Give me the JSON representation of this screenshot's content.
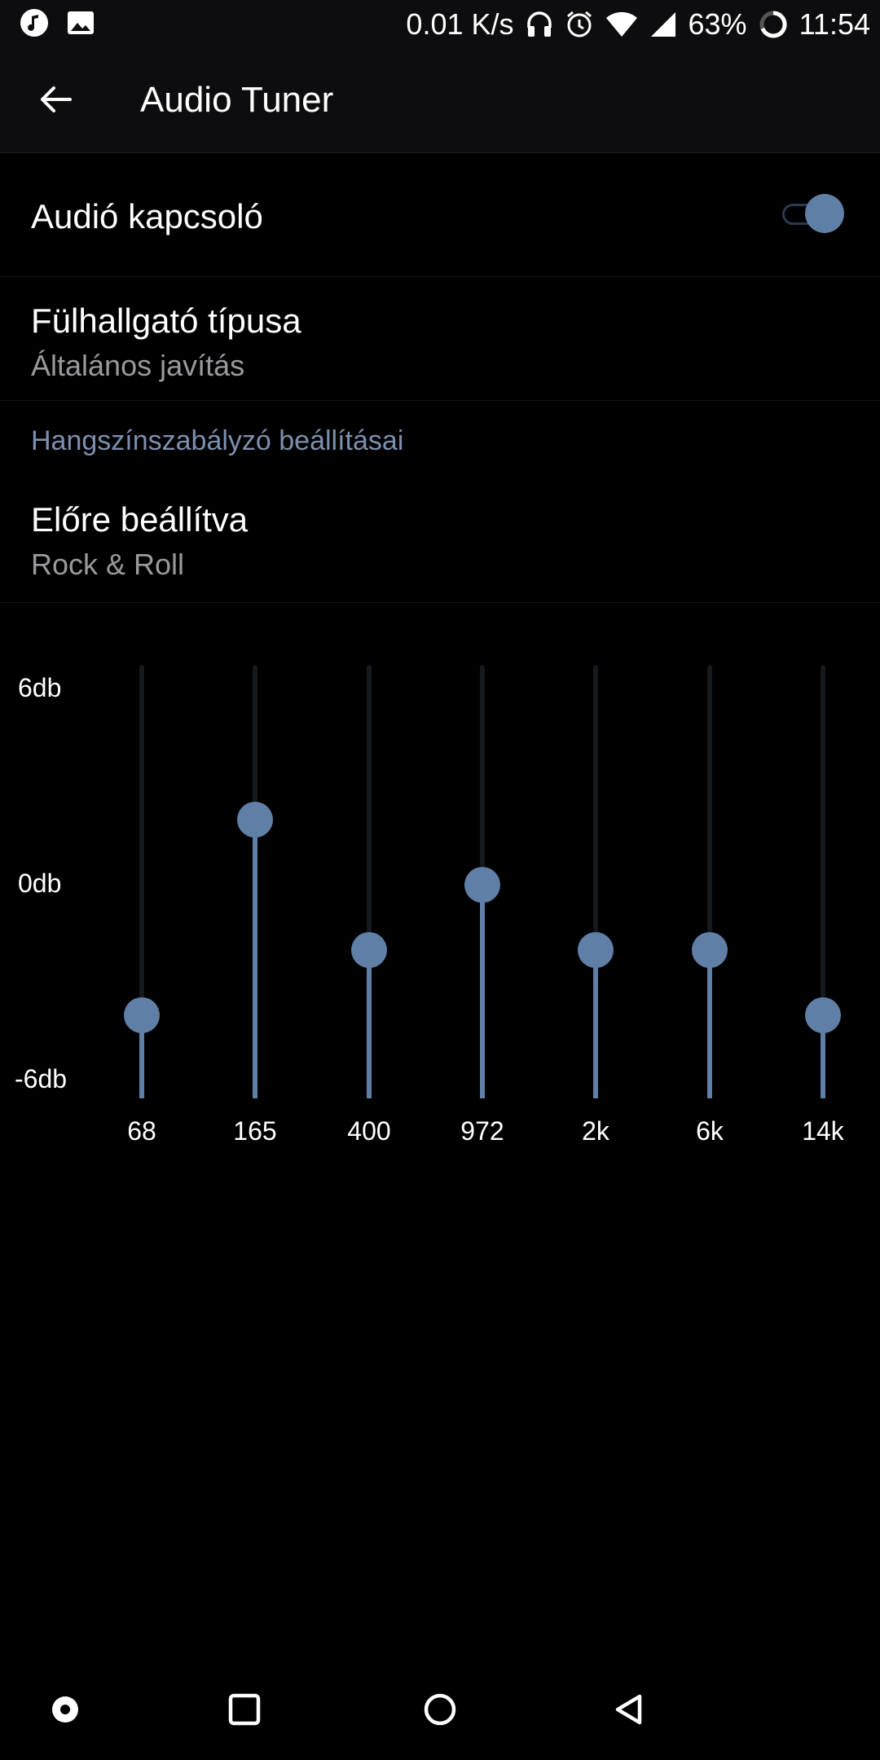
{
  "status_bar": {
    "icons_left": [
      "music-note-icon",
      "image-icon"
    ],
    "network_speed": "0.01 K/s",
    "icons_right": [
      "headphones-icon",
      "alarm-icon",
      "wifi-icon",
      "signal-icon"
    ],
    "battery": "63%",
    "time": "11:54"
  },
  "app_bar": {
    "back_icon": "arrow-left-icon",
    "title": "Audio Tuner"
  },
  "settings": {
    "audio_switch": {
      "label": "Audió kapcsoló",
      "enabled": true
    },
    "headphone_type": {
      "label": "Fülhallgató típusa",
      "value": "Általános javítás"
    },
    "eq_section_header": "Hangszínszabályzó beállításai",
    "preset": {
      "label": "Előre beállítva",
      "value": "Rock & Roll"
    }
  },
  "equalizer": {
    "db_labels": {
      "max": "6db",
      "mid": "0db",
      "min": "-6db"
    },
    "range_db": [
      -6,
      6
    ],
    "bands": [
      {
        "freq": "68",
        "db": -4
      },
      {
        "freq": "165",
        "db": 2
      },
      {
        "freq": "400",
        "db": -2
      },
      {
        "freq": "972",
        "db": 0
      },
      {
        "freq": "2k",
        "db": -2
      },
      {
        "freq": "6k",
        "db": -2
      },
      {
        "freq": "14k",
        "db": -4
      }
    ],
    "accent_color": "#5f7fa6",
    "track_color": "#15181d"
  },
  "nav_bar": {
    "buttons": [
      "record-icon",
      "recents-square-icon",
      "home-circle-icon",
      "back-triangle-icon"
    ]
  }
}
